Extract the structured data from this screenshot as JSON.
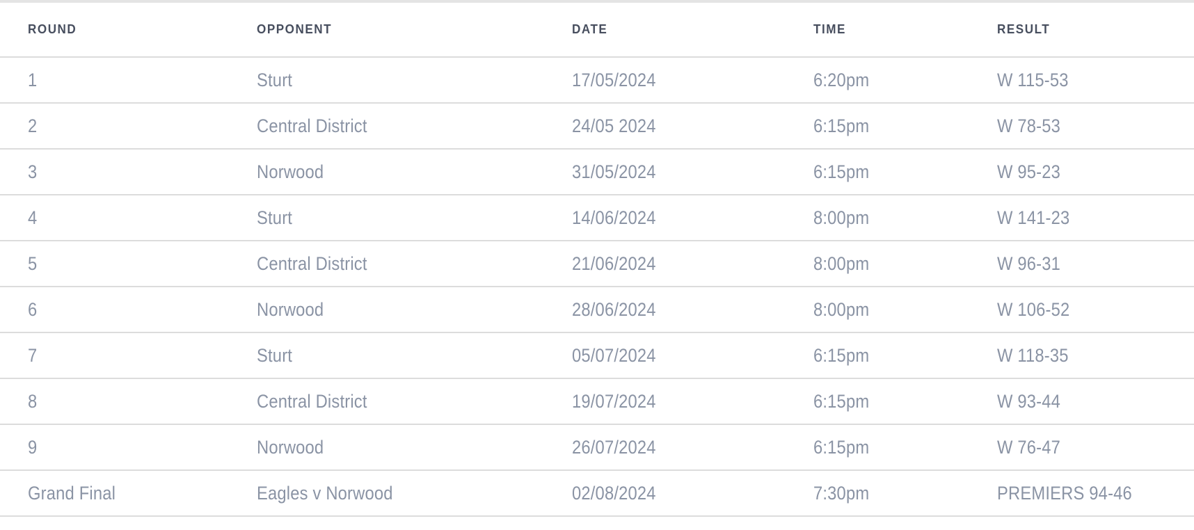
{
  "colors": {
    "background": "#ffffff",
    "top_strip": "#e4e4e4",
    "divider": "#dcdcdc",
    "header_text": "#474e5e",
    "body_text": "#8a93a4"
  },
  "table": {
    "columns": [
      {
        "key": "round",
        "label": "ROUND"
      },
      {
        "key": "opponent",
        "label": "OPPONENT"
      },
      {
        "key": "date",
        "label": "DATE"
      },
      {
        "key": "time",
        "label": "TIME"
      },
      {
        "key": "result",
        "label": "RESULT"
      }
    ],
    "rows": [
      {
        "round": "1",
        "opponent": "Sturt",
        "date": "17/05/2024",
        "time": "6:20pm",
        "result": "W 115-53"
      },
      {
        "round": "2",
        "opponent": "Central District",
        "date": "24/05 2024",
        "time": "6:15pm",
        "result": "W 78-53"
      },
      {
        "round": "3",
        "opponent": "Norwood",
        "date": "31/05/2024",
        "time": "6:15pm",
        "result": "W 95-23"
      },
      {
        "round": "4",
        "opponent": "Sturt",
        "date": "14/06/2024",
        "time": "8:00pm",
        "result": "W 141-23"
      },
      {
        "round": "5",
        "opponent": "Central District",
        "date": "21/06/2024",
        "time": "8:00pm",
        "result": "W 96-31"
      },
      {
        "round": "6",
        "opponent": "Norwood",
        "date": "28/06/2024",
        "time": "8:00pm",
        "result": "W 106-52"
      },
      {
        "round": "7",
        "opponent": "Sturt",
        "date": "05/07/2024",
        "time": "6:15pm",
        "result": "W 118-35"
      },
      {
        "round": "8",
        "opponent": "Central District",
        "date": "19/07/2024",
        "time": "6:15pm",
        "result": "W 93-44"
      },
      {
        "round": "9",
        "opponent": "Norwood",
        "date": "26/07/2024",
        "time": "6:15pm",
        "result": "W 76-47"
      },
      {
        "round": "Grand Final",
        "opponent": "Eagles v Norwood",
        "date": "02/08/2024",
        "time": "7:30pm",
        "result": "PREMIERS 94-46"
      }
    ]
  }
}
